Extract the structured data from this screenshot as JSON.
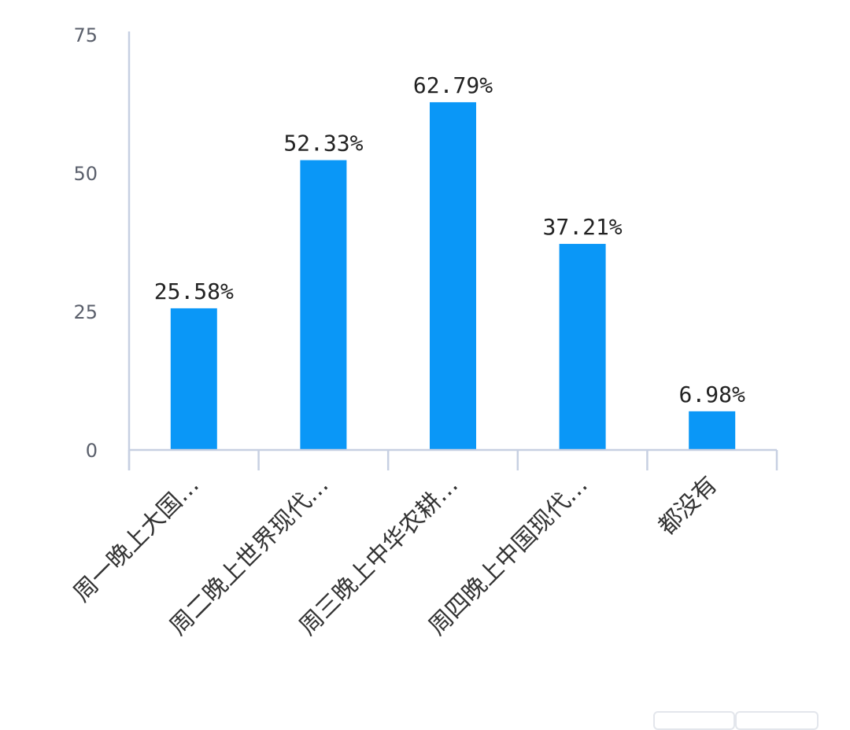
{
  "chart_data": {
    "type": "bar",
    "categories": [
      "周一晚上大国…",
      "周二晚上世界现代…",
      "周三晚上中华农耕…",
      "周四晚上中国现代…",
      "都没有"
    ],
    "values": [
      25.58,
      52.33,
      62.79,
      37.21,
      6.98
    ],
    "data_labels": [
      "25.58%",
      "52.33%",
      "62.79%",
      "37.21%",
      "6.98%"
    ],
    "yticks": [
      "0",
      "25",
      "50",
      "75"
    ],
    "ylim": [
      0,
      75
    ],
    "grid": false,
    "legend": "none",
    "colors": {
      "bar": "#0a97f7",
      "axis": "#c7d0e2"
    }
  }
}
